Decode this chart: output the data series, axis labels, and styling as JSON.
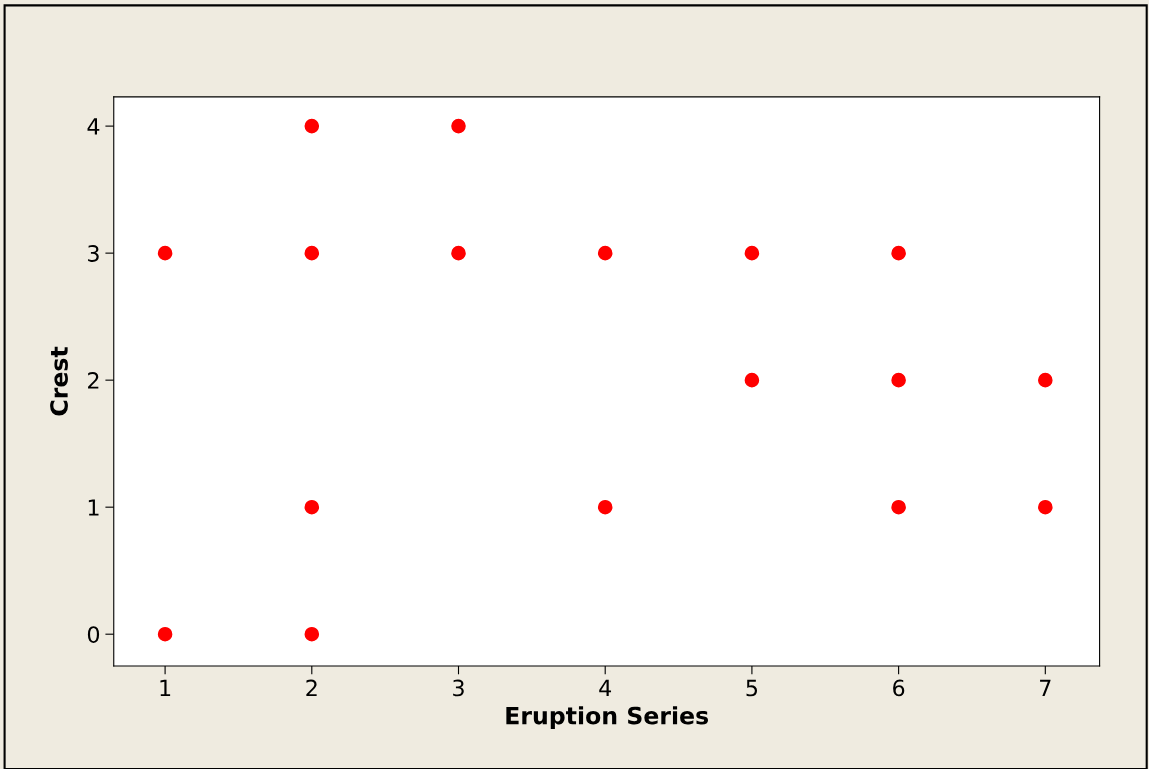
{
  "chart_data": {
    "type": "scatter",
    "xlabel": "Eruption Series",
    "ylabel": "Crest",
    "x": [
      1,
      1,
      2,
      2,
      2,
      2,
      3,
      3,
      4,
      4,
      5,
      5,
      6,
      6,
      6,
      7,
      7
    ],
    "series": [
      {
        "color": "#ff0000",
        "values": [
          3,
          0,
          4,
          3,
          1,
          0,
          4,
          3,
          3,
          1,
          3,
          2,
          3,
          2,
          1,
          2,
          1
        ]
      }
    ],
    "xlim": [
      0.65,
      7.37
    ],
    "xticks": [
      1,
      2,
      3,
      4,
      5,
      6,
      7
    ],
    "ylim": [
      -0.25,
      4.23
    ],
    "yticks": [
      0,
      1,
      2,
      3,
      4
    ],
    "marker": "circle",
    "grid": false,
    "legend": false
  }
}
